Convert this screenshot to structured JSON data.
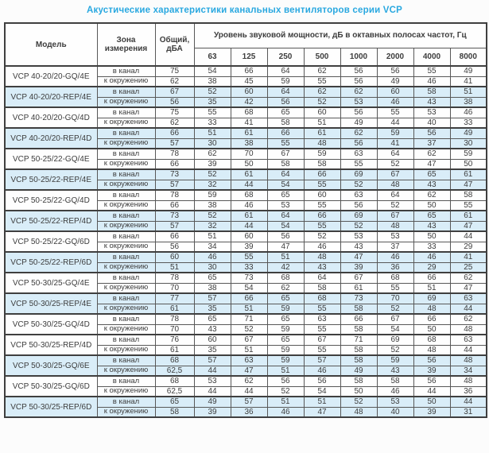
{
  "page": {
    "title": "Акустические характеристики канальных вентиляторов  серии VCP"
  },
  "colors": {
    "title": "#29a8e0",
    "header_bg": "#c6e2f2",
    "shaded_row_bg": "#d9edf8",
    "border": "#3f3f3f",
    "text": "#3d3d3d"
  },
  "table": {
    "headers": {
      "model": "Модель",
      "zone": "Зона измерения",
      "total": "Общий, дБА",
      "spl": "Уровень звуковой мощности, дБ в октавных полосах частот, Гц",
      "frequencies": [
        "63",
        "125",
        "250",
        "500",
        "1000",
        "2000",
        "4000",
        "8000"
      ]
    },
    "rows": [
      {
        "model": "VCP 40-20/20-GQ/4E",
        "shaded": false,
        "measurements": [
          {
            "zone": "в канал",
            "total": "75",
            "bands": [
              54,
              66,
              64,
              62,
              56,
              56,
              55,
              49
            ]
          },
          {
            "zone": "к окружению",
            "total": "62",
            "bands": [
              38,
              45,
              59,
              55,
              56,
              49,
              46,
              41
            ]
          }
        ]
      },
      {
        "model": "VCP 40-20/20-REP/4E",
        "shaded": true,
        "measurements": [
          {
            "zone": "в канал",
            "total": "67",
            "bands": [
              52,
              60,
              64,
              62,
              62,
              60,
              58,
              51
            ]
          },
          {
            "zone": "к окружению",
            "total": "56",
            "bands": [
              35,
              42,
              56,
              52,
              53,
              46,
              43,
              38
            ]
          }
        ]
      },
      {
        "model": "VCP 40-20/20-GQ/4D",
        "shaded": false,
        "measurements": [
          {
            "zone": "в канал",
            "total": "75",
            "bands": [
              55,
              68,
              65,
              60,
              56,
              55,
              53,
              46
            ]
          },
          {
            "zone": "к окружению",
            "total": "62",
            "bands": [
              33,
              41,
              58,
              51,
              49,
              44,
              40,
              33
            ]
          }
        ]
      },
      {
        "model": "VCP 40-20/20-REP/4D",
        "shaded": true,
        "measurements": [
          {
            "zone": "в канал",
            "total": "66",
            "bands": [
              51,
              61,
              66,
              61,
              62,
              59,
              56,
              49
            ]
          },
          {
            "zone": "к окружению",
            "total": "57",
            "bands": [
              30,
              38,
              55,
              48,
              56,
              41,
              37,
              30
            ]
          }
        ]
      },
      {
        "model": "VCP 50-25/22-GQ/4E",
        "shaded": false,
        "measurements": [
          {
            "zone": "в канал",
            "total": "78",
            "bands": [
              62,
              70,
              67,
              59,
              63,
              64,
              62,
              59
            ]
          },
          {
            "zone": "к окружению",
            "total": "66",
            "bands": [
              39,
              50,
              58,
              58,
              55,
              52,
              47,
              50
            ]
          }
        ]
      },
      {
        "model": "VCP 50-25/22-REP/4E",
        "shaded": true,
        "measurements": [
          {
            "zone": "в канал",
            "total": "73",
            "bands": [
              52,
              61,
              64,
              66,
              69,
              67,
              65,
              61
            ]
          },
          {
            "zone": "к окружению",
            "total": "57",
            "bands": [
              32,
              44,
              54,
              55,
              52,
              48,
              43,
              47
            ]
          }
        ]
      },
      {
        "model": "VCP 50-25/22-GQ/4D",
        "shaded": false,
        "measurements": [
          {
            "zone": "в канал",
            "total": "78",
            "bands": [
              59,
              68,
              65,
              60,
              63,
              64,
              62,
              58
            ]
          },
          {
            "zone": "к окружению",
            "total": "66",
            "bands": [
              38,
              46,
              53,
              55,
              56,
              52,
              50,
              55
            ]
          }
        ]
      },
      {
        "model": "VCP 50-25/22-REP/4D",
        "shaded": true,
        "measurements": [
          {
            "zone": "в канал",
            "total": "73",
            "bands": [
              52,
              61,
              64,
              66,
              69,
              67,
              65,
              61
            ]
          },
          {
            "zone": "к окружению",
            "total": "57",
            "bands": [
              32,
              44,
              54,
              55,
              52,
              48,
              43,
              47
            ]
          }
        ]
      },
      {
        "model": "VCP 50-25/22-GQ/6D",
        "shaded": false,
        "measurements": [
          {
            "zone": "в канал",
            "total": "66",
            "bands": [
              51,
              60,
              56,
              52,
              53,
              53,
              50,
              44
            ]
          },
          {
            "zone": "к окружению",
            "total": "56",
            "bands": [
              34,
              39,
              47,
              46,
              43,
              37,
              33,
              29
            ]
          }
        ]
      },
      {
        "model": "VCP 50-25/22-REP/6D",
        "shaded": true,
        "measurements": [
          {
            "zone": "в канал",
            "total": "60",
            "bands": [
              46,
              55,
              51,
              48,
              47,
              46,
              46,
              41
            ]
          },
          {
            "zone": "к окружению",
            "total": "51",
            "bands": [
              30,
              33,
              42,
              43,
              39,
              36,
              29,
              25
            ]
          }
        ]
      },
      {
        "model": "VCP 50-30/25-GQ/4E",
        "shaded": false,
        "measurements": [
          {
            "zone": "в канал",
            "total": "78",
            "bands": [
              65,
              73,
              68,
              64,
              67,
              68,
              66,
              62
            ]
          },
          {
            "zone": "к окружению",
            "total": "70",
            "bands": [
              38,
              54,
              62,
              58,
              61,
              55,
              51,
              47
            ]
          }
        ]
      },
      {
        "model": "VCP 50-30/25-REP/4E",
        "shaded": true,
        "measurements": [
          {
            "zone": "в канал",
            "total": "77",
            "bands": [
              57,
              66,
              65,
              68,
              73,
              70,
              69,
              63
            ]
          },
          {
            "zone": "к окружению",
            "total": "61",
            "bands": [
              35,
              51,
              59,
              55,
              58,
              52,
              48,
              44
            ]
          }
        ]
      },
      {
        "model": "VCP 50-30/25-GQ/4D",
        "shaded": false,
        "measurements": [
          {
            "zone": "в канал",
            "total": "78",
            "bands": [
              65,
              71,
              65,
              63,
              66,
              67,
              66,
              62
            ]
          },
          {
            "zone": "к окружению",
            "total": "70",
            "bands": [
              43,
              52,
              59,
              55,
              58,
              54,
              50,
              48
            ]
          }
        ]
      },
      {
        "model": "VCP 50-30/25-REP/4D",
        "shaded": false,
        "measurements": [
          {
            "zone": "в канал",
            "total": "76",
            "bands": [
              60,
              67,
              65,
              67,
              71,
              69,
              68,
              63
            ]
          },
          {
            "zone": "к окружению",
            "total": "61",
            "bands": [
              35,
              51,
              59,
              55,
              58,
              52,
              48,
              44
            ]
          }
        ]
      },
      {
        "model": "VCP 50-30/25-GQ/6E",
        "shaded": true,
        "measurements": [
          {
            "zone": "в канал",
            "total": "68",
            "bands": [
              57,
              63,
              59,
              57,
              58,
              59,
              56,
              48
            ]
          },
          {
            "zone": "к окружению",
            "total": "62,5",
            "bands": [
              44,
              47,
              51,
              46,
              49,
              43,
              39,
              34
            ]
          }
        ]
      },
      {
        "model": "VCP 50-30/25-GQ/6D",
        "shaded": false,
        "measurements": [
          {
            "zone": "в канал",
            "total": "68",
            "bands": [
              53,
              62,
              56,
              56,
              58,
              58,
              56,
              48
            ]
          },
          {
            "zone": "к окружению",
            "total": "62,5",
            "bands": [
              44,
              44,
              52,
              54,
              50,
              46,
              44,
              36
            ]
          }
        ]
      },
      {
        "model": "VCP 50-30/25-REP/6D",
        "shaded": true,
        "measurements": [
          {
            "zone": "в канал",
            "total": "65",
            "bands": [
              49,
              57,
              51,
              51,
              52,
              53,
              50,
              44
            ]
          },
          {
            "zone": "к окружению",
            "total": "58",
            "bands": [
              39,
              36,
              46,
              47,
              48,
              40,
              39,
              31
            ]
          }
        ]
      }
    ]
  }
}
